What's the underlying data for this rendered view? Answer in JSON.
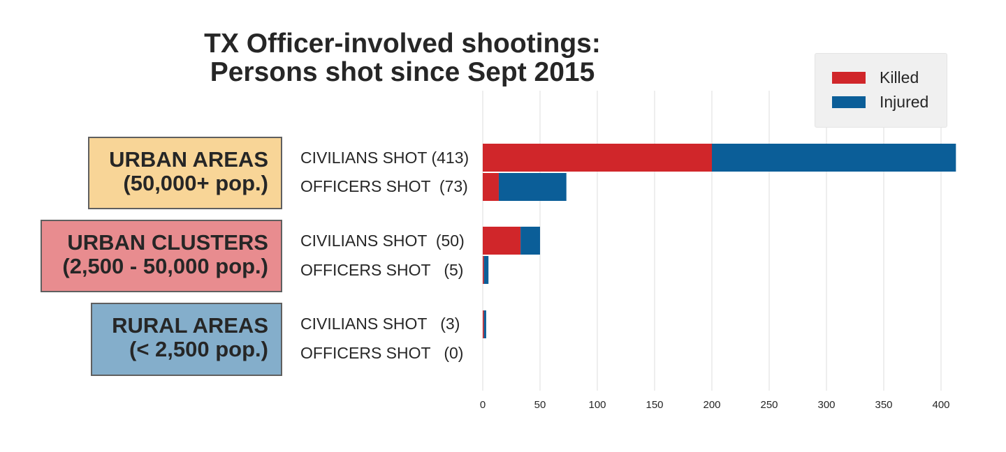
{
  "chart_data": {
    "type": "bar",
    "orientation": "horizontal",
    "stacked": true,
    "title": [
      "TX Officer-involved shootings:",
      "Persons shot since Sept 2015"
    ],
    "xlim": [
      0,
      413
    ],
    "xticks": [
      0,
      50,
      100,
      150,
      200,
      250,
      300,
      350,
      400
    ],
    "grid": true,
    "legend": {
      "placement": "top-right",
      "items": [
        "Killed",
        "Injured"
      ]
    },
    "colors": {
      "Killed": "#d0262a",
      "Injured": "#0b5e98"
    },
    "groups": [
      {
        "label_line1": "URBAN AREAS",
        "label_line2": "(50,000+ pop.)",
        "color": "#f8d597"
      },
      {
        "label_line1": "URBAN CLUSTERS",
        "label_line2": "(2,500 - 50,000 pop.)",
        "color": "#e88c8f"
      },
      {
        "label_line1": "RURAL AREAS",
        "label_line2": "(< 2,500 pop.)",
        "color": "#84aecb"
      }
    ],
    "categories": [
      "CIVILIANS SHOT (413)",
      "OFFICERS SHOT  (73)",
      "CIVILIANS SHOT  (50)",
      "OFFICERS SHOT   (5)",
      "CIVILIANS SHOT   (3)",
      "OFFICERS SHOT   (0)"
    ],
    "series": [
      {
        "name": "Killed",
        "values": [
          200,
          14,
          33,
          1,
          1,
          0
        ]
      },
      {
        "name": "Injured",
        "values": [
          213,
          59,
          17,
          4,
          2,
          0
        ]
      }
    ]
  }
}
